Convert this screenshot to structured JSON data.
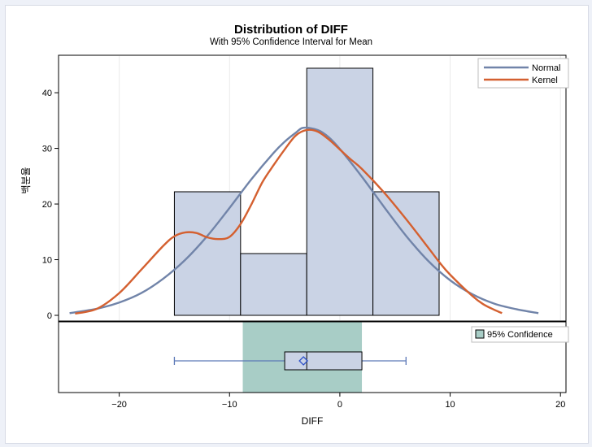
{
  "chart_data": {
    "type": "histogram",
    "title": "Distribution of DIFF",
    "subtitle": "With 95% Confidence Interval for Mean",
    "xlabel": "DIFF",
    "ylabel": "백분율",
    "xlim": [
      -25.5,
      20.5
    ],
    "ylim": [
      0,
      46
    ],
    "xticks": [
      "−20",
      "−10",
      "0",
      "10",
      "20"
    ],
    "xtick_values": [
      -20,
      -10,
      0,
      10,
      20
    ],
    "yticks": [
      "0",
      "10",
      "20",
      "30",
      "40"
    ],
    "ytick_values": [
      0,
      10,
      20,
      30,
      40
    ],
    "grid": true,
    "legend_position": "top-right",
    "bins": [
      {
        "start": -15,
        "end": -9,
        "value": 22.2
      },
      {
        "start": -9,
        "end": -3,
        "value": 11.1
      },
      {
        "start": -3,
        "end": 3,
        "value": 44.4
      },
      {
        "start": 3,
        "end": 9,
        "value": 22.2
      }
    ],
    "series": [
      {
        "name": "Normal",
        "color": "#7184a9",
        "x": [
          -24.5,
          -22,
          -20,
          -18,
          -16,
          -14,
          -12,
          -10,
          -8,
          -6,
          -5,
          -4,
          -3.3,
          -2,
          -1,
          0,
          2,
          4,
          6,
          8,
          10,
          12,
          14,
          16,
          18
        ],
        "y": [
          0.4,
          1.2,
          2.3,
          4.0,
          6.6,
          10.0,
          14.3,
          19.3,
          24.5,
          29.2,
          31.2,
          32.8,
          33.7,
          33.3,
          32.0,
          29.9,
          24.9,
          19.5,
          14.3,
          9.8,
          6.3,
          3.8,
          2.1,
          1.1,
          0.4
        ]
      },
      {
        "name": "Kernel",
        "color": "#d46030",
        "x": [
          -24,
          -22,
          -20,
          -18,
          -16,
          -15,
          -14,
          -13,
          -12,
          -11,
          -10,
          -9,
          -8,
          -7,
          -6,
          -5,
          -4,
          -3,
          -2,
          -1,
          0,
          1,
          2,
          4,
          6,
          8,
          9,
          10,
          12,
          13,
          14,
          14.7
        ],
        "y": [
          0.3,
          1.2,
          4.0,
          8.2,
          12.5,
          14.2,
          14.9,
          14.8,
          14.0,
          13.7,
          14.1,
          16.4,
          20.0,
          24.0,
          27.0,
          29.8,
          32.3,
          33.3,
          33.0,
          31.6,
          29.8,
          28.0,
          26.3,
          22.1,
          17.3,
          12.2,
          9.6,
          7.3,
          3.5,
          2.0,
          1.0,
          0.4
        ]
      }
    ],
    "boxplot": {
      "min": -15,
      "q1": -5,
      "median": -3,
      "mean": -3.3,
      "q3": 2,
      "max": 6,
      "ci_mean": [
        -8.8,
        2.0
      ],
      "ci_label": "95% Confidence"
    },
    "colors": {
      "bar_fill": "#cad3e5",
      "bar_stroke": "#000000",
      "ci_band": "#a8cdc6",
      "box": "#5c79b7",
      "grid": "#eaeaea"
    }
  }
}
